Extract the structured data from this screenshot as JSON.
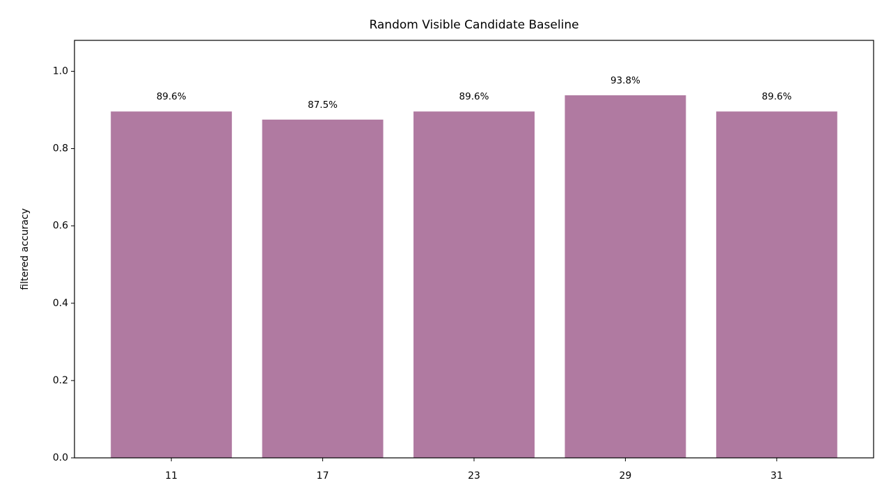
{
  "chart_data": {
    "type": "bar",
    "title": "Random Visible Candidate Baseline",
    "y_label": "filtered accuracy",
    "categories": [
      "11",
      "17",
      "23",
      "29",
      "31"
    ],
    "values": [
      0.896,
      0.875,
      0.896,
      0.938,
      0.896
    ],
    "value_labels": [
      "89.6%",
      "87.5%",
      "89.6%",
      "93.8%",
      "89.6%"
    ],
    "color": "#b07aa1",
    "ylim": [
      0,
      1.08
    ],
    "yticks": [
      {
        "value": 0,
        "label": "0.0"
      },
      {
        "value": 0.2,
        "label": "0.2"
      },
      {
        "value": 0.4,
        "label": "0.4"
      },
      {
        "value": 0.6,
        "label": "0.6"
      },
      {
        "value": 0.8,
        "label": "0.8"
      },
      {
        "value": 1,
        "label": "1.0"
      }
    ],
    "grid": false
  }
}
